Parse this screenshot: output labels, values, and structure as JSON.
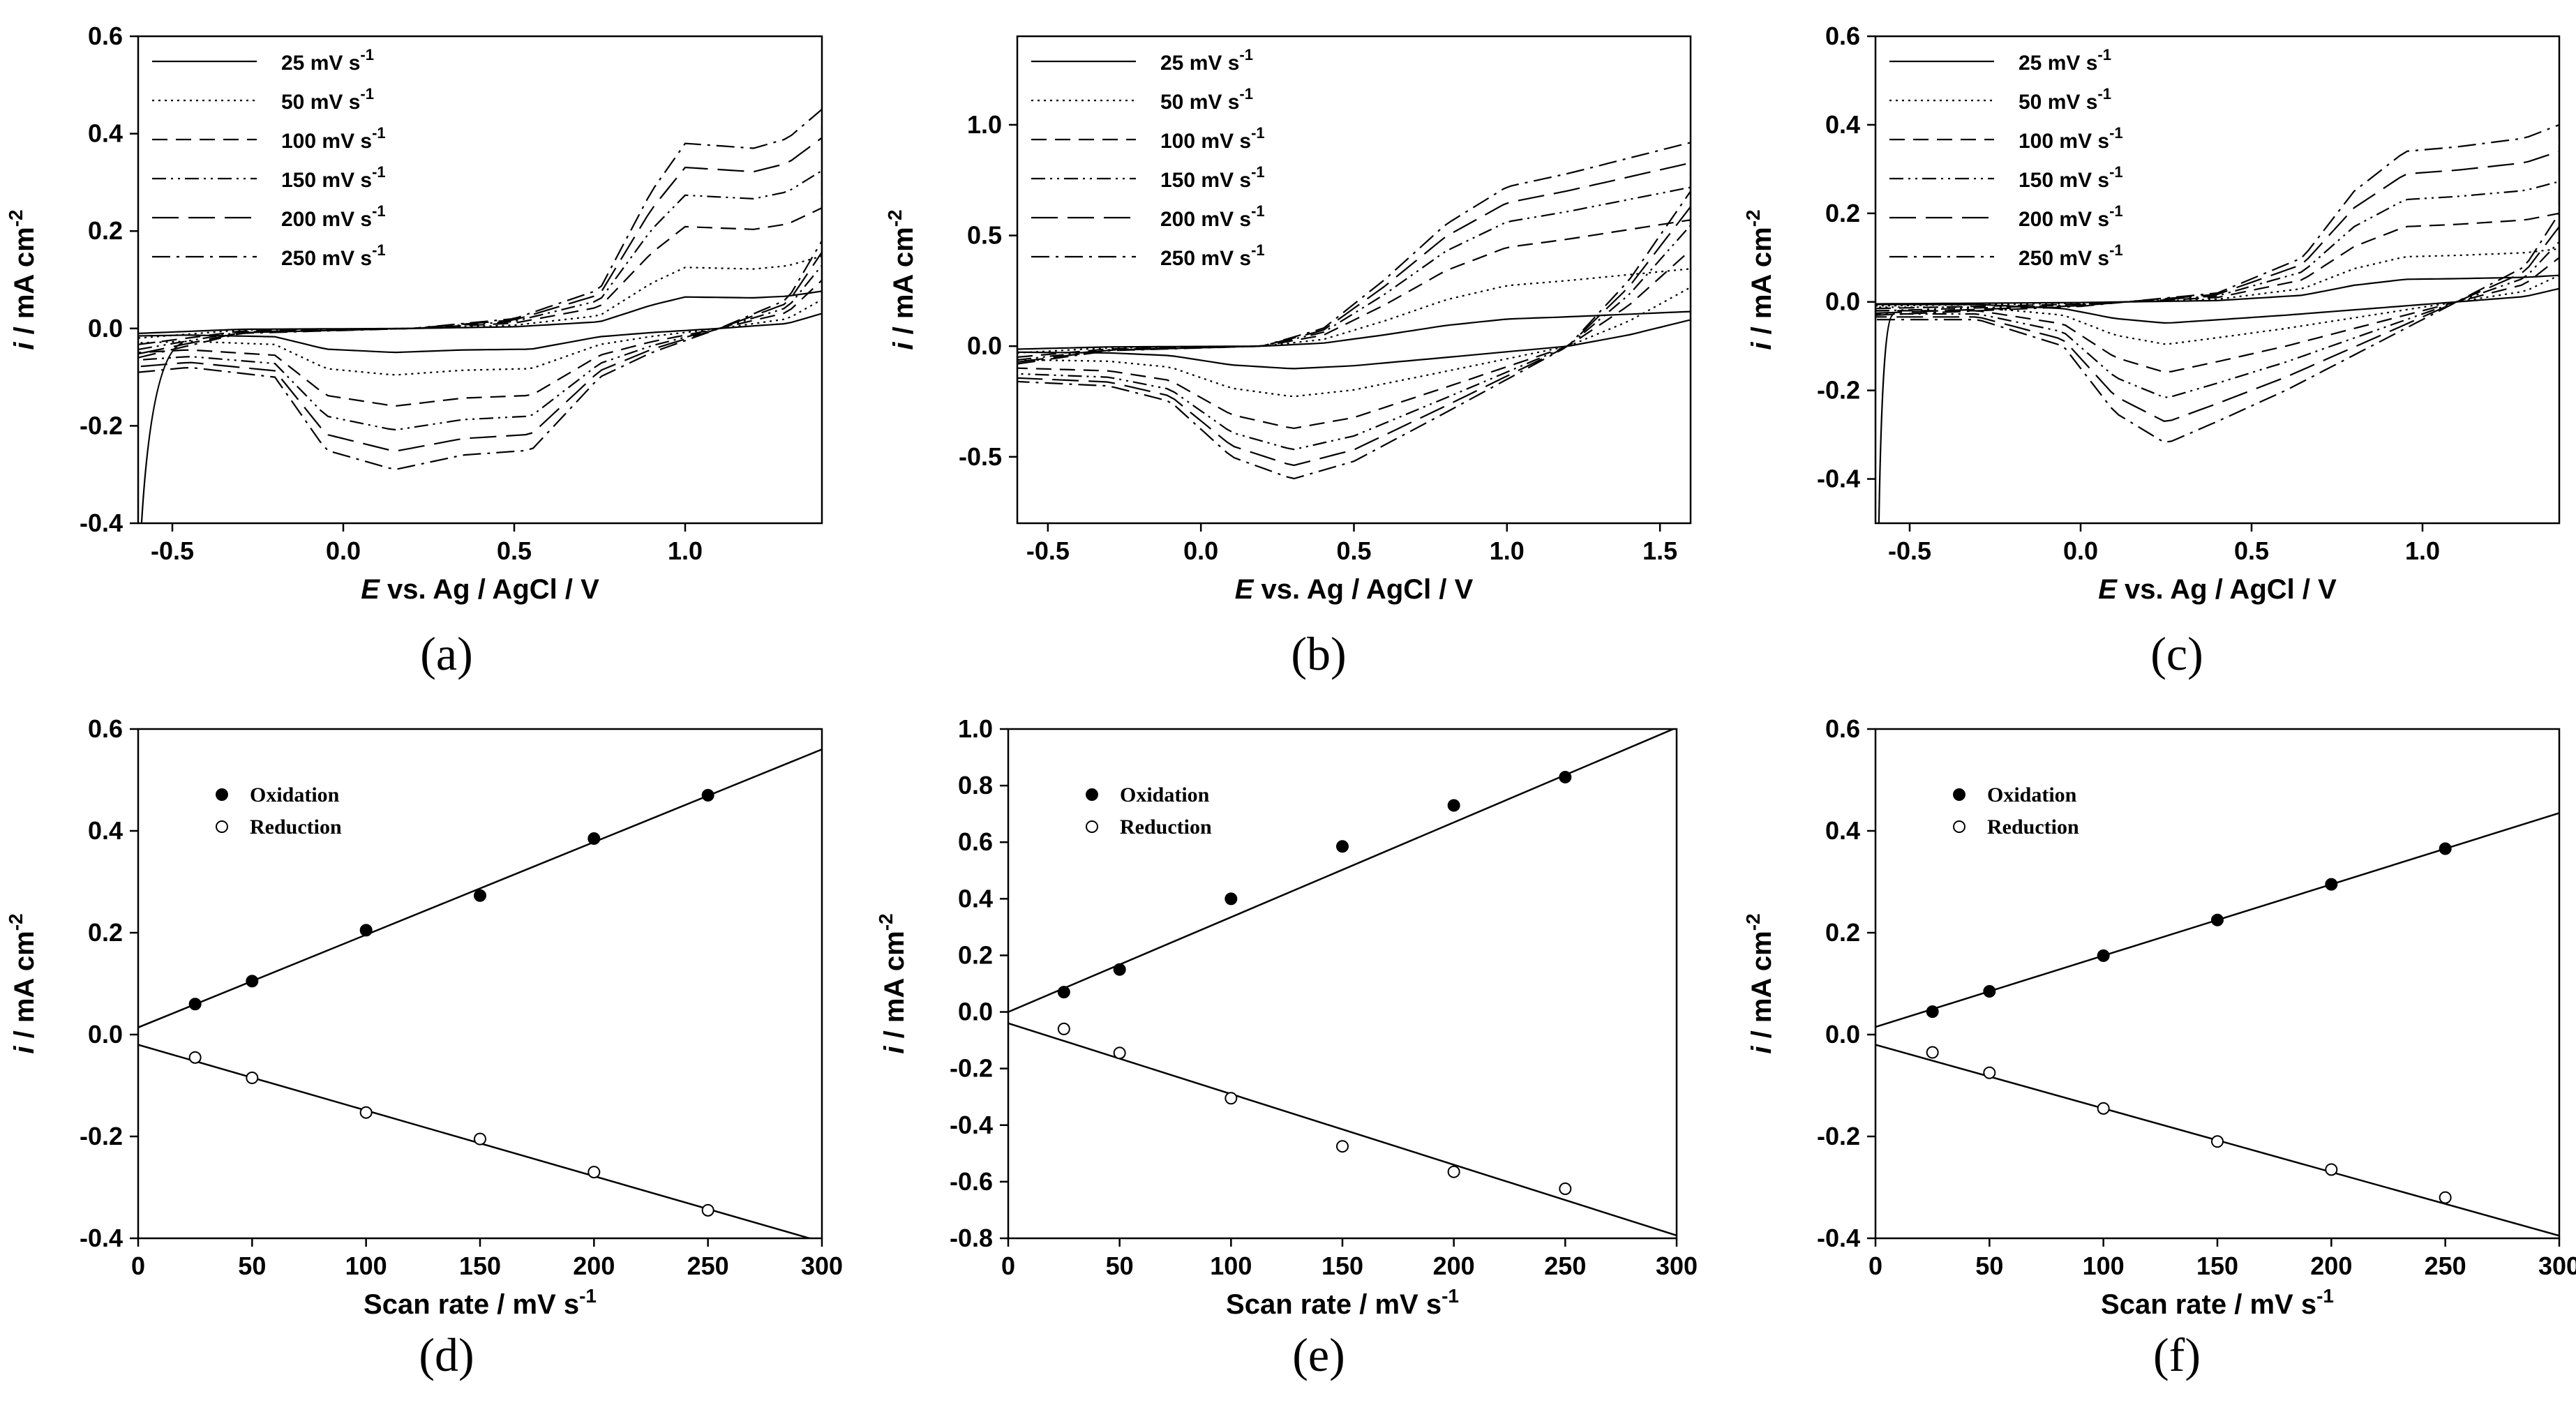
{
  "chart_data": [
    {
      "id": "a",
      "type": "line",
      "panel_label": "(a)",
      "xlabel_italic": "E",
      "xlabel_rest": " vs. Ag / AgCl / V",
      "ylabel_italic": "i",
      "ylabel_rest": " / mA cm",
      "ylabel_sup": "-2",
      "xlim": [
        -0.6,
        1.4
      ],
      "ylim": [
        -0.4,
        0.6
      ],
      "xticks": [
        -0.5,
        0.0,
        0.5,
        1.0
      ],
      "xtick_labels": [
        "-0.5",
        "0.0",
        "0.5",
        "1.0"
      ],
      "yticks": [
        -0.4,
        -0.2,
        0.0,
        0.2,
        0.4,
        0.6
      ],
      "ytick_labels": [
        "-0.4",
        "-0.2",
        "0.0",
        "0.2",
        "0.4",
        "0.6"
      ],
      "legend_position": "top-left",
      "series": [
        {
          "name": "25 mV s",
          "sup": "-1",
          "scale": 0.17,
          "dash": "solid"
        },
        {
          "name": "50 mV s",
          "sup": "-1",
          "scale": 0.33,
          "dash": "dot"
        },
        {
          "name": "100 mV s",
          "sup": "-1",
          "scale": 0.55,
          "dash": "dash"
        },
        {
          "name": "150 mV s",
          "sup": "-1",
          "scale": 0.72,
          "dash": "dashdotdot"
        },
        {
          "name": "200 mV s",
          "sup": "-1",
          "scale": 0.87,
          "dash": "longdash"
        },
        {
          "name": "250 mV s",
          "sup": "-1",
          "scale": 1.0,
          "dash": "dashdot"
        }
      ],
      "curve_shape": {
        "ox_points": [
          [
            -0.6,
            -0.06
          ],
          [
            -0.3,
            -0.01
          ],
          [
            0.2,
            0.0
          ],
          [
            0.5,
            0.02
          ],
          [
            0.75,
            0.08
          ],
          [
            0.9,
            0.28
          ],
          [
            1.0,
            0.38
          ],
          [
            1.2,
            0.37
          ],
          [
            1.3,
            0.39
          ],
          [
            1.4,
            0.45
          ]
        ],
        "red_points": [
          [
            1.4,
            0.18
          ],
          [
            1.3,
            0.06
          ],
          [
            1.1,
            0.0
          ],
          [
            0.9,
            -0.05
          ],
          [
            0.75,
            -0.1
          ],
          [
            0.55,
            -0.25
          ],
          [
            0.35,
            -0.26
          ],
          [
            0.15,
            -0.29
          ],
          [
            -0.05,
            -0.25
          ],
          [
            -0.2,
            -0.1
          ],
          [
            -0.45,
            -0.08
          ],
          [
            -0.6,
            -0.09
          ]
        ]
      }
    },
    {
      "id": "b",
      "type": "line",
      "panel_label": "(b)",
      "xlabel_italic": "E",
      "xlabel_rest": " vs. Ag / AgCl / V",
      "ylabel_italic": "i",
      "ylabel_rest": " / mA cm",
      "ylabel_sup": "-2",
      "xlim": [
        -0.6,
        1.6
      ],
      "ylim": [
        -0.8,
        1.4
      ],
      "xticks": [
        -0.5,
        0.0,
        0.5,
        1.0,
        1.5
      ],
      "xtick_labels": [
        "-0.5",
        "0.0",
        "0.5",
        "1.0",
        "1.5"
      ],
      "yticks": [
        -0.5,
        0.0,
        0.5,
        1.0
      ],
      "ytick_labels": [
        "-0.5",
        "0.0",
        "0.5",
        "1.0"
      ],
      "legend_position": "top-left",
      "series": [
        {
          "name": "25 mV s",
          "sup": "-1",
          "scale": 0.17,
          "dash": "solid"
        },
        {
          "name": "50 mV s",
          "sup": "-1",
          "scale": 0.38,
          "dash": "dot"
        },
        {
          "name": "100 mV s",
          "sup": "-1",
          "scale": 0.62,
          "dash": "dash"
        },
        {
          "name": "150 mV s",
          "sup": "-1",
          "scale": 0.78,
          "dash": "dashdotdot"
        },
        {
          "name": "200 mV s",
          "sup": "-1",
          "scale": 0.9,
          "dash": "longdash"
        },
        {
          "name": "250 mV s",
          "sup": "-1",
          "scale": 1.0,
          "dash": "dashdot"
        }
      ],
      "curve_shape": {
        "ox_points": [
          [
            -0.6,
            -0.08
          ],
          [
            -0.3,
            -0.02
          ],
          [
            0.2,
            0.0
          ],
          [
            0.4,
            0.08
          ],
          [
            0.6,
            0.3
          ],
          [
            0.8,
            0.55
          ],
          [
            1.0,
            0.72
          ],
          [
            1.2,
            0.78
          ],
          [
            1.4,
            0.85
          ],
          [
            1.6,
            0.92
          ]
        ],
        "red_points": [
          [
            1.6,
            0.7
          ],
          [
            1.4,
            0.3
          ],
          [
            1.2,
            0.0
          ],
          [
            1.0,
            -0.15
          ],
          [
            0.8,
            -0.3
          ],
          [
            0.5,
            -0.52
          ],
          [
            0.3,
            -0.6
          ],
          [
            0.1,
            -0.5
          ],
          [
            -0.1,
            -0.25
          ],
          [
            -0.3,
            -0.18
          ],
          [
            -0.6,
            -0.16
          ]
        ]
      }
    },
    {
      "id": "c",
      "type": "line",
      "panel_label": "(c)",
      "xlabel_italic": "E",
      "xlabel_rest": " vs. Ag / AgCl / V",
      "ylabel_italic": "i",
      "ylabel_rest": " / mA cm",
      "ylabel_sup": "-2",
      "xlim": [
        -0.6,
        1.4
      ],
      "ylim": [
        -0.5,
        0.6
      ],
      "xticks": [
        -0.5,
        0.0,
        0.5,
        1.0
      ],
      "xtick_labels": [
        "-0.5",
        "0.0",
        "0.5",
        "1.0"
      ],
      "yticks": [
        -0.4,
        -0.2,
        0.0,
        0.2,
        0.4,
        0.6
      ],
      "ytick_labels": [
        "-0.4",
        "-0.2",
        "0.0",
        "0.2",
        "0.4",
        "0.6"
      ],
      "legend_position": "top-left",
      "series": [
        {
          "name": "25 mV s",
          "sup": "-1",
          "scale": 0.15,
          "dash": "solid"
        },
        {
          "name": "50 mV s",
          "sup": "-1",
          "scale": 0.3,
          "dash": "dot"
        },
        {
          "name": "100 mV s",
          "sup": "-1",
          "scale": 0.5,
          "dash": "dash"
        },
        {
          "name": "150 mV s",
          "sup": "-1",
          "scale": 0.68,
          "dash": "dashdotdot"
        },
        {
          "name": "200 mV s",
          "sup": "-1",
          "scale": 0.85,
          "dash": "longdash"
        },
        {
          "name": "250 mV s",
          "sup": "-1",
          "scale": 1.0,
          "dash": "dashdot"
        }
      ],
      "curve_shape": {
        "ox_points": [
          [
            -0.6,
            -0.03
          ],
          [
            -0.3,
            -0.02
          ],
          [
            0.0,
            -0.01
          ],
          [
            0.4,
            0.02
          ],
          [
            0.65,
            0.1
          ],
          [
            0.8,
            0.25
          ],
          [
            0.95,
            0.34
          ],
          [
            1.1,
            0.35
          ],
          [
            1.3,
            0.37
          ],
          [
            1.4,
            0.4
          ]
        ],
        "red_points": [
          [
            1.4,
            0.2
          ],
          [
            1.3,
            0.08
          ],
          [
            1.1,
            0.0
          ],
          [
            0.9,
            -0.08
          ],
          [
            0.6,
            -0.2
          ],
          [
            0.4,
            -0.27
          ],
          [
            0.25,
            -0.32
          ],
          [
            0.1,
            -0.25
          ],
          [
            -0.05,
            -0.1
          ],
          [
            -0.3,
            -0.04
          ],
          [
            -0.6,
            -0.04
          ]
        ]
      }
    },
    {
      "id": "d",
      "type": "scatter",
      "panel_label": "(d)",
      "xlabel": "Scan rate / mV s",
      "xlabel_sup": "-1",
      "ylabel_italic": "i",
      "ylabel_rest": " / mA cm",
      "ylabel_sup": "-2",
      "xlim": [
        0,
        300
      ],
      "ylim": [
        -0.4,
        0.6
      ],
      "xticks": [
        0,
        50,
        100,
        150,
        200,
        250,
        300
      ],
      "xtick_labels": [
        "0",
        "50",
        "100",
        "150",
        "200",
        "250",
        "300"
      ],
      "yticks": [
        -0.4,
        -0.2,
        0.0,
        0.2,
        0.4,
        0.6
      ],
      "ytick_labels": [
        "-0.4",
        "-0.2",
        "0.0",
        "0.2",
        "0.4",
        "0.6"
      ],
      "legend_position": "top-left",
      "x": [
        25,
        50,
        100,
        150,
        200,
        250
      ],
      "series": [
        {
          "name": "Oxidation",
          "marker": "filled",
          "values": [
            0.06,
            0.105,
            0.205,
            0.273,
            0.385,
            0.47
          ],
          "fit": [
            0.014,
            0.00182
          ]
        },
        {
          "name": "Reduction",
          "marker": "open",
          "values": [
            -0.045,
            -0.085,
            -0.153,
            -0.205,
            -0.27,
            -0.345
          ],
          "fit": [
            -0.02,
            -0.00129
          ]
        }
      ]
    },
    {
      "id": "e",
      "type": "scatter",
      "panel_label": "(e)",
      "xlabel": "Scan rate / mV s",
      "xlabel_sup": "-1",
      "ylabel_italic": "i",
      "ylabel_rest": " / mA cm",
      "ylabel_sup": "-2",
      "xlim": [
        0,
        300
      ],
      "ylim": [
        -0.8,
        1.0
      ],
      "xticks": [
        0,
        50,
        100,
        150,
        200,
        250,
        300
      ],
      "xtick_labels": [
        "0",
        "50",
        "100",
        "150",
        "200",
        "250",
        "300"
      ],
      "yticks": [
        -0.8,
        -0.6,
        -0.4,
        -0.2,
        0.0,
        0.2,
        0.4,
        0.6,
        0.8,
        1.0
      ],
      "ytick_labels": [
        "-0.8",
        "-0.6",
        "-0.4",
        "-0.2",
        "0.0",
        "0.2",
        "0.4",
        "0.6",
        "0.8",
        "1.0"
      ],
      "legend_position": "top-left",
      "x": [
        25,
        50,
        100,
        150,
        200,
        250
      ],
      "series": [
        {
          "name": "Oxidation",
          "marker": "filled",
          "values": [
            0.07,
            0.15,
            0.4,
            0.585,
            0.73,
            0.83
          ],
          "fit": [
            0.0,
            0.00335
          ]
        },
        {
          "name": "Reduction",
          "marker": "open",
          "values": [
            -0.06,
            -0.145,
            -0.305,
            -0.475,
            -0.565,
            -0.625
          ],
          "fit": [
            -0.04,
            -0.0025
          ]
        }
      ]
    },
    {
      "id": "f",
      "type": "scatter",
      "panel_label": "(f)",
      "xlabel": "Scan rate / mV s",
      "xlabel_sup": "-1",
      "ylabel_italic": "i",
      "ylabel_rest": " / mA cm",
      "ylabel_sup": "-2",
      "xlim": [
        0,
        300
      ],
      "ylim": [
        -0.4,
        0.6
      ],
      "xticks": [
        0,
        50,
        100,
        150,
        200,
        250,
        300
      ],
      "xtick_labels": [
        "0",
        "50",
        "100",
        "150",
        "200",
        "250",
        "300"
      ],
      "yticks": [
        -0.4,
        -0.2,
        0.0,
        0.2,
        0.4,
        0.6
      ],
      "ytick_labels": [
        "-0.4",
        "-0.2",
        "0.0",
        "0.2",
        "0.4",
        "0.6"
      ],
      "legend_position": "top-left",
      "x": [
        25,
        50,
        100,
        150,
        200,
        250
      ],
      "series": [
        {
          "name": "Oxidation",
          "marker": "filled",
          "values": [
            0.045,
            0.085,
            0.155,
            0.225,
            0.295,
            0.365
          ],
          "fit": [
            0.015,
            0.0014
          ]
        },
        {
          "name": "Reduction",
          "marker": "open",
          "values": [
            -0.035,
            -0.075,
            -0.145,
            -0.21,
            -0.265,
            -0.32
          ],
          "fit": [
            -0.02,
            -0.00125
          ]
        }
      ]
    }
  ]
}
